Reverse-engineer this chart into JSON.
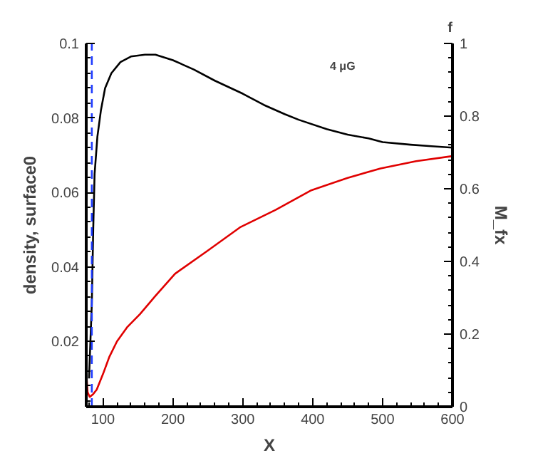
{
  "chart_data": {
    "type": "line",
    "title": "f",
    "xlabel": "X",
    "ylabel": "density, surface0",
    "y2label": "M_fx",
    "annotations": [
      "4 μG"
    ],
    "xlim": [
      76,
      600
    ],
    "ylim": [
      0.0024,
      0.1
    ],
    "y2lim": [
      0,
      1
    ],
    "xticks": [
      100,
      200,
      300,
      400,
      500,
      600
    ],
    "yticks": [
      0.02,
      0.04,
      0.06,
      0.08,
      0.1
    ],
    "y2ticks": [
      0,
      0.2,
      0.4,
      0.6,
      0.8,
      1
    ],
    "grid": false,
    "series": [
      {
        "color": "#000000",
        "x": [
          80,
          84,
          86,
          88,
          92,
          97,
          103,
          112,
          125,
          140,
          160,
          175,
          200,
          230,
          260,
          300,
          330,
          360,
          380,
          420,
          450,
          480,
          500,
          540,
          570,
          600
        ],
        "values": [
          0.01,
          0.03,
          0.05,
          0.065,
          0.075,
          0.082,
          0.088,
          0.092,
          0.095,
          0.0965,
          0.097,
          0.097,
          0.0955,
          0.093,
          0.09,
          0.0865,
          0.0835,
          0.081,
          0.0795,
          0.077,
          0.0755,
          0.0745,
          0.0735,
          0.0728,
          0.0724,
          0.072
        ]
      },
      {
        "color": "#e00000",
        "axis": "y2",
        "x": [
          76,
          78,
          81,
          86,
          91,
          100,
          109,
          120,
          135,
          153,
          175,
          203,
          250,
          297,
          347,
          397,
          450,
          497,
          548,
          600
        ],
        "values": [
          0.1,
          0.04,
          0.027,
          0.035,
          0.047,
          0.09,
          0.137,
          0.18,
          0.22,
          0.255,
          0.305,
          0.366,
          0.43,
          0.495,
          0.542,
          0.595,
          0.63,
          0.656,
          0.676,
          0.69
        ]
      },
      {
        "color": "#1f3cff",
        "line_style": "dashed",
        "x": [
          84,
          84
        ],
        "values": [
          0.0024,
          0.1
        ]
      }
    ]
  }
}
